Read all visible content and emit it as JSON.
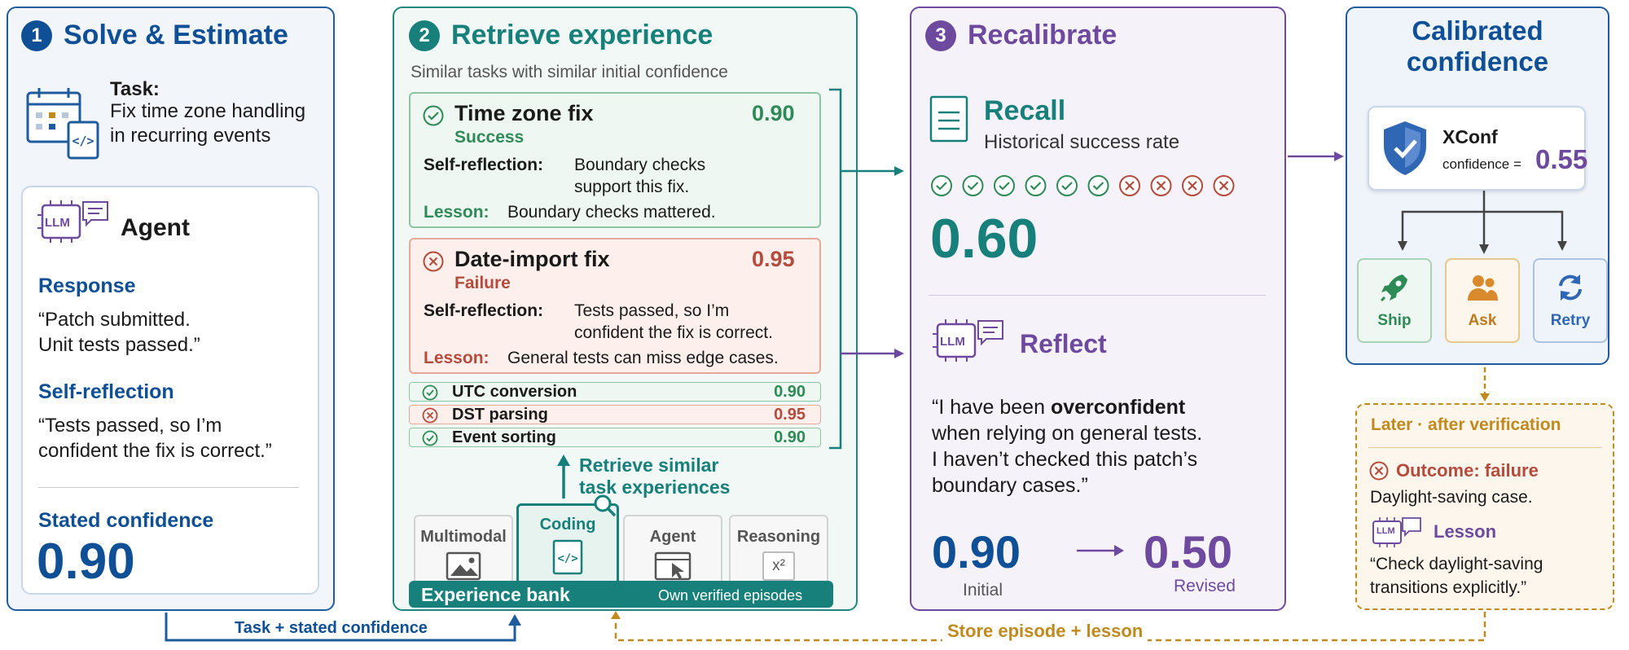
{
  "colors": {
    "blue": "#0f4f95",
    "teal": "#17807a",
    "purple": "#6e4a9e",
    "green": "#2e8a57",
    "red": "#b54b3d",
    "orange": "#c08a1e"
  },
  "panel1": {
    "number": "1",
    "title": "Solve & Estimate",
    "task_label": "Task:",
    "task_line1": "Fix time zone handling",
    "task_line2": "in recurring events",
    "agent_badge": "LLM",
    "agent_label": "Agent",
    "response_label": "Response",
    "response_line1": "“Patch submitted.",
    "response_line2": "Unit tests passed.”",
    "reflection_label": "Self-reflection",
    "reflection_line1": "“Tests passed, so I’m",
    "reflection_line2": "confident the fix is correct.”",
    "stated_label": "Stated confidence",
    "stated_value": "0.90"
  },
  "panel2": {
    "number": "2",
    "title": "Retrieve experience",
    "subtitle": "Similar tasks with similar initial confidence",
    "card1": {
      "title": "Time zone fix",
      "value": "0.90",
      "status": "Success",
      "reflection_label": "Self-reflection:",
      "reflection_line1": "Boundary checks",
      "reflection_line2": "support this fix.",
      "lesson_label": "Lesson:",
      "lesson_text": "Boundary checks mattered."
    },
    "card2": {
      "title": "Date-import fix",
      "value": "0.95",
      "status": "Failure",
      "reflection_label": "Self-reflection:",
      "reflection_line1": "Tests passed, so I’m",
      "reflection_line2": "confident the fix is correct.",
      "lesson_label": "Lesson:",
      "lesson_text": "General tests can miss edge cases."
    },
    "rows": [
      {
        "label": "UTC conversion",
        "value": "0.90",
        "outcome": "success"
      },
      {
        "label": "DST parsing",
        "value": "0.95",
        "outcome": "failure"
      },
      {
        "label": "Event sorting",
        "value": "0.90",
        "outcome": "success"
      }
    ],
    "retrieve_line1": "Retrieve similar",
    "retrieve_line2": "task experiences",
    "categories": [
      "Multimodal",
      "Coding",
      "Agent",
      "Reasoning"
    ],
    "reasoning_glyph": "x²",
    "bank_label": "Experience bank",
    "bank_note": "Own verified episodes"
  },
  "panel3": {
    "number": "3",
    "title": "Recalibrate",
    "recall_title": "Recall",
    "recall_subtitle": "Historical success rate",
    "history": [
      "success",
      "success",
      "success",
      "success",
      "success",
      "success",
      "failure",
      "failure",
      "failure",
      "failure"
    ],
    "rate": "0.60",
    "reflect_badge": "LLM",
    "reflect_title": "Reflect",
    "quote_line1_pre": "“I have been ",
    "quote_line1_bold": "overconfident",
    "quote_line2": "when relying on general tests.",
    "quote_line3": "I haven’t checked this patch’s",
    "quote_line4": "boundary cases.”",
    "initial_value": "0.90",
    "initial_label": "Initial",
    "revised_value": "0.50",
    "revised_label": "Revised"
  },
  "panel4": {
    "title_line1": "Calibrated",
    "title_line2": "confidence",
    "xconf_label": "XConf",
    "confidence_prefix": "confidence =",
    "confidence_value": "0.55",
    "actions": [
      "Ship",
      "Ask",
      "Retry"
    ]
  },
  "later": {
    "header": "Later · after verification",
    "outcome": "Outcome: failure",
    "case": "Daylight-saving case.",
    "badge": "LLM",
    "lesson_label": "Lesson",
    "lesson_line1": "“Check daylight-saving",
    "lesson_line2": "transitions explicitly.”"
  },
  "flows": {
    "task_conf": "Task + stated confidence",
    "store": "Store episode + lesson"
  }
}
